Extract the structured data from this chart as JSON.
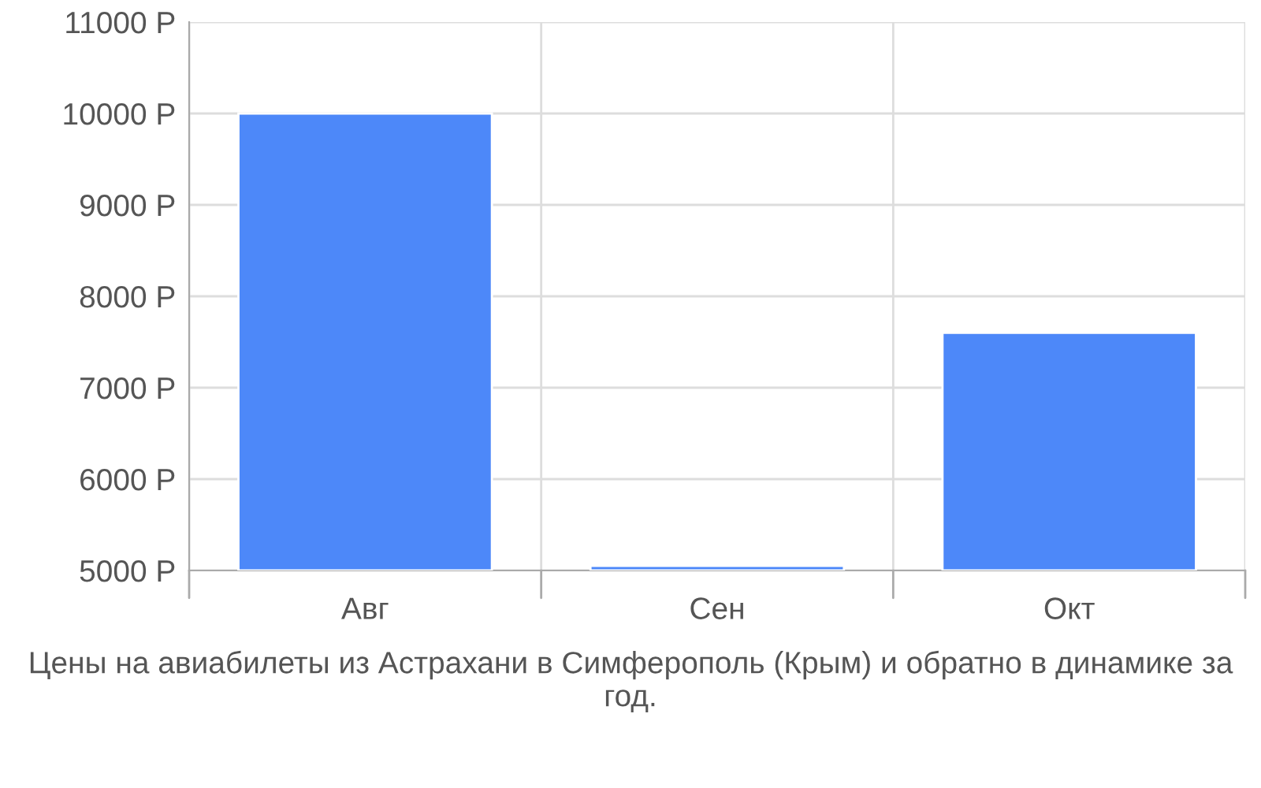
{
  "chart_data": {
    "type": "bar",
    "categories": [
      "Авг",
      "Сен",
      "Окт"
    ],
    "values": [
      10000,
      5050,
      7600
    ],
    "color": "#4d88f9",
    "ylim": [
      5000,
      11000
    ],
    "yticks": [
      {
        "value": 5000,
        "label": "5000 Р"
      },
      {
        "value": 6000,
        "label": "6000 Р"
      },
      {
        "value": 7000,
        "label": "7000 Р"
      },
      {
        "value": 8000,
        "label": "8000 Р"
      },
      {
        "value": 9000,
        "label": "9000 Р"
      },
      {
        "value": 10000,
        "label": "10000 Р"
      },
      {
        "value": 11000,
        "label": "11000 Р"
      }
    ],
    "grid": true,
    "annotations": [
      "Цены на авиабилеты из Астрахани в Симферополь (Крым) и обратно в динамике за год."
    ]
  }
}
